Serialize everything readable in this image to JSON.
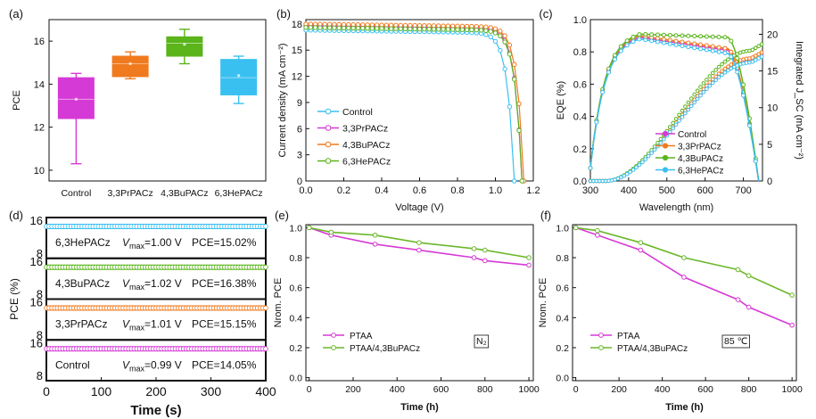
{
  "colors": {
    "control": "#d63ad6",
    "pr": "#3ac0f0",
    "bu": "#f07a1e",
    "he": "#5ab41a",
    "ptaa": "#d63ad6",
    "ptaa_bu": "#6ab82a"
  },
  "chart_data": [
    {
      "panel": "(a)",
      "type": "box",
      "ylabel": "PCE",
      "ylim": [
        9.5,
        17
      ],
      "yticks": [
        "10",
        "12",
        "14",
        "16"
      ],
      "categories": [
        "Control",
        "3,3PrPACz",
        "4,3BuPACz",
        "6,3HePACz"
      ],
      "boxes": [
        {
          "name": "Control",
          "min": 10.3,
          "q1": 12.4,
          "median": 13.3,
          "q3": 14.3,
          "max": 14.5,
          "mean": 13.3,
          "color": "#d63ad6"
        },
        {
          "name": "3,3PrPACz",
          "min": 14.25,
          "q1": 14.35,
          "median": 14.95,
          "q3": 15.3,
          "max": 15.5,
          "mean": 14.95,
          "color": "#f07a1e"
        },
        {
          "name": "4,3BuPACz",
          "min": 14.95,
          "q1": 15.3,
          "median": 15.9,
          "q3": 16.2,
          "max": 16.55,
          "mean": 15.85,
          "color": "#5ab41a"
        },
        {
          "name": "6,3HePACz",
          "min": 13.1,
          "q1": 13.5,
          "median": 14.3,
          "q3": 15.15,
          "max": 15.3,
          "mean": 14.4,
          "color": "#3ac0f0"
        }
      ]
    },
    {
      "panel": "(b)",
      "type": "line",
      "xlabel": "Voltage (V)",
      "ylabel": "Current density (mA cm⁻²)",
      "xlim": [
        0,
        1.2
      ],
      "ylim": [
        0,
        18.5
      ],
      "xticks": [
        "0.0",
        "0.2",
        "0.4",
        "0.6",
        "0.8",
        "1.0",
        "1.2"
      ],
      "yticks": [
        "0",
        "3",
        "6",
        "9",
        "12",
        "15",
        "18"
      ],
      "legend": [
        "Control",
        "3,3PrPACz",
        "4,3BuPACz",
        "6,3HePACz"
      ],
      "series": [
        {
          "name": "Control",
          "jsc": 17.3,
          "voc": 1.1,
          "color": "#3ac0f0"
        },
        {
          "name": "3,3PrPACz",
          "jsc": 17.8,
          "voc": 1.14,
          "color": "#d63ad6"
        },
        {
          "name": "4,3BuPACz",
          "jsc": 18.0,
          "voc": 1.15,
          "color": "#f07a1e"
        },
        {
          "name": "6,3HePACz",
          "jsc": 17.6,
          "voc": 1.14,
          "color": "#5ab41a"
        }
      ]
    },
    {
      "panel": "(c)",
      "type": "line",
      "xlabel": "Wavelength (nm)",
      "ylabel": "EQE (%)",
      "y2label": "Integrated J_SC (mA cm⁻²)",
      "xlim": [
        300,
        750
      ],
      "ylim": [
        0,
        1.0
      ],
      "y2lim": [
        0,
        22
      ],
      "xticks": [
        "300",
        "400",
        "500",
        "600",
        "700"
      ],
      "yticks": [
        "0.0",
        "0.2",
        "0.4",
        "0.6",
        "0.8",
        "1.0"
      ],
      "y2ticks": [
        "0",
        "5",
        "10",
        "15",
        "20"
      ],
      "legend": [
        "Control",
        "3,3PrPACz",
        "4,3BuPACz",
        "6,3HePACz"
      ],
      "series": [
        {
          "name": "Control",
          "peak": 0.89,
          "plateau": 0.81,
          "jsc_end": 17.3,
          "color": "#d63ad6"
        },
        {
          "name": "3,3PrPACz",
          "peak": 0.9,
          "plateau": 0.82,
          "jsc_end": 17.6,
          "color": "#f07a1e"
        },
        {
          "name": "4,3BuPACz",
          "peak": 0.91,
          "plateau": 0.89,
          "jsc_end": 18.7,
          "color": "#5ab41a"
        },
        {
          "name": "6,3HePACz",
          "peak": 0.88,
          "plateau": 0.79,
          "jsc_end": 17.0,
          "color": "#3ac0f0"
        }
      ]
    },
    {
      "panel": "(d)",
      "type": "line",
      "xlabel": "Time (s)",
      "ylabel": "PCE (%)",
      "xlim": [
        0,
        400
      ],
      "xticks": [
        "0",
        "100",
        "200",
        "300",
        "400"
      ],
      "series": [
        {
          "name": "6,3HePACz",
          "vmax": "=1.00 V",
          "pce": "PCE=15.02%",
          "value": 15.02,
          "color": "#3ac0f0"
        },
        {
          "name": "4,3BuPACz",
          "vmax": "=1.02 V",
          "pce": "PCE=16.38%",
          "value": 16.38,
          "color": "#5ab41a"
        },
        {
          "name": "3,3PrPACz",
          "vmax": "=1.01 V",
          "pce": "PCE=15.15%",
          "value": 15.15,
          "color": "#f07a1e"
        },
        {
          "name": "Control",
          "vmax": "=0.99 V",
          "pce": "PCE=14.05%",
          "value": 14.05,
          "color": "#d63ad6"
        }
      ],
      "axis_ticks": [
        "16",
        "8",
        "16",
        "8",
        "16",
        "8",
        "16",
        "8"
      ]
    },
    {
      "panel": "(e)",
      "type": "line",
      "xlabel": "Time (h)",
      "ylabel": "Nrom. PCE",
      "xlim": [
        0,
        1000
      ],
      "ylim": [
        0,
        1.0
      ],
      "xticks": [
        "0",
        "200",
        "400",
        "600",
        "800",
        "1000"
      ],
      "yticks": [
        "0.0",
        "0.2",
        "0.4",
        "0.6",
        "0.8",
        "1.0"
      ],
      "annotation": "N₂",
      "series": [
        {
          "name": "PTAA",
          "x": [
            0,
            100,
            300,
            500,
            750,
            800,
            1000
          ],
          "y": [
            1.0,
            0.95,
            0.89,
            0.85,
            0.8,
            0.78,
            0.75
          ],
          "color": "#d63ad6"
        },
        {
          "name": "PTAA/4,3BuPACz",
          "x": [
            0,
            100,
            300,
            500,
            750,
            800,
            1000
          ],
          "y": [
            1.0,
            0.97,
            0.95,
            0.9,
            0.86,
            0.85,
            0.8
          ],
          "color": "#6ab82a"
        }
      ]
    },
    {
      "panel": "(f)",
      "type": "line",
      "xlabel": "Time (h)",
      "ylabel": "Nrom. PCE",
      "xlim": [
        0,
        1000
      ],
      "ylim": [
        0,
        1.0
      ],
      "xticks": [
        "0",
        "200",
        "400",
        "600",
        "800",
        "1000"
      ],
      "yticks": [
        "0.0",
        "0.2",
        "0.4",
        "0.6",
        "0.8",
        "1.0"
      ],
      "annotation": "85 ℃",
      "series": [
        {
          "name": "PTAA",
          "x": [
            0,
            100,
            300,
            500,
            750,
            800,
            1000
          ],
          "y": [
            1.0,
            0.95,
            0.85,
            0.67,
            0.52,
            0.47,
            0.35
          ],
          "color": "#d63ad6"
        },
        {
          "name": "PTAA/4,3BuPACz",
          "x": [
            0,
            100,
            300,
            500,
            750,
            800,
            1000
          ],
          "y": [
            1.0,
            0.98,
            0.9,
            0.8,
            0.72,
            0.68,
            0.55
          ],
          "color": "#6ab82a"
        }
      ]
    }
  ],
  "vmax_label": "V",
  "vmax_sub": "max"
}
